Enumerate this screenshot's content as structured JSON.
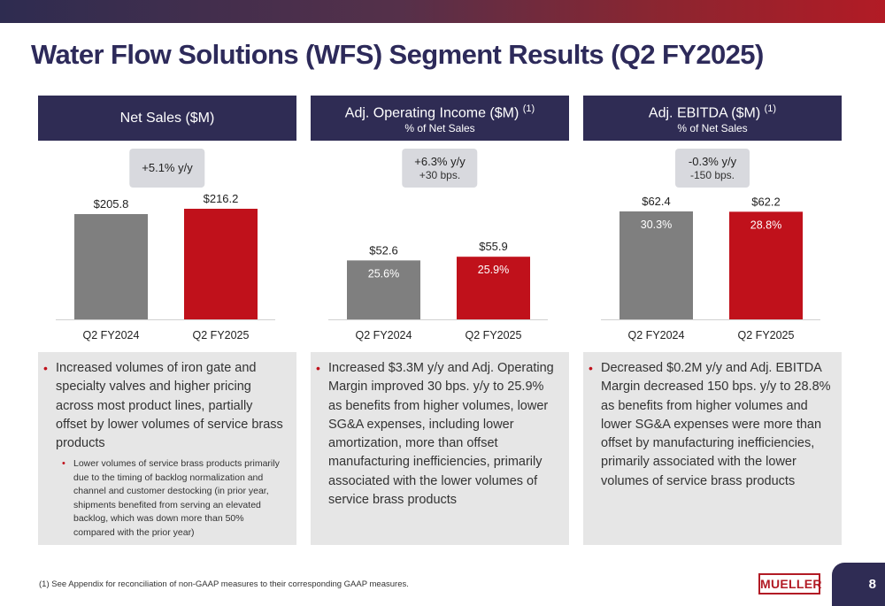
{
  "title": "Water Flow Solutions (WFS) Segment Results (Q2 FY2025)",
  "footnote": "(1)  See Appendix for reconciliation of non-GAAP measures to their corresponding GAAP measures.",
  "logo_text": "MUELLER",
  "page_number": "8",
  "colors": {
    "header_navy": "#2f2c54",
    "bar_prior": "#7f7f7f",
    "bar_current": "#c0111b",
    "title": "#2d2a5a",
    "bullet": "#c0111b"
  },
  "panels": [
    {
      "header": "Net Sales ($M)",
      "header_sup": "",
      "subheader": "",
      "change_line1": "+5.1% y/y",
      "change_line2": "",
      "bullets": [
        {
          "text": "Increased volumes of iron gate and specialty valves and higher pricing across most product lines, partially offset by lower volumes of service brass products",
          "sub": "Lower volumes of service brass products primarily due to the timing of backlog normalization and channel and customer destocking (in prior year, shipments benefited from serving an elevated backlog, which was down more than 50% compared with the prior year)"
        }
      ]
    },
    {
      "header": "Adj. Operating Income ($M)",
      "header_sup": "(1)",
      "subheader": "% of Net Sales",
      "change_line1": "+6.3% y/y",
      "change_line2": "+30 bps.",
      "bullets": [
        {
          "text": "Increased $3.3M y/y and Adj. Operating Margin improved 30 bps. y/y to 25.9% as benefits from higher volumes, lower SG&A expenses, including lower amortization, more than offset manufacturing inefficiencies, primarily associated with the lower volumes of service brass products",
          "sub": ""
        }
      ]
    },
    {
      "header": "Adj. EBITDA ($M)",
      "header_sup": "(1)",
      "subheader": "% of Net Sales",
      "change_line1": "-0.3% y/y",
      "change_line2": "-150 bps.",
      "bullets": [
        {
          "text": "Decreased $0.2M y/y and Adj. EBITDA Margin decreased 150 bps. y/y to 28.8% as benefits from higher volumes and lower SG&A expenses were more than offset by manufacturing inefficiencies, primarily associated with the lower volumes of service brass products",
          "sub": ""
        }
      ]
    }
  ],
  "chart_data": [
    {
      "type": "bar",
      "categories": [
        "Q2 FY2024",
        "Q2 FY2025"
      ],
      "values": [
        205.8,
        216.2
      ],
      "value_labels": [
        "$205.8",
        "$216.2"
      ],
      "inner_labels": [
        "",
        ""
      ],
      "title": "Net Sales ($M)",
      "ylim": [
        0,
        230
      ]
    },
    {
      "type": "bar",
      "categories": [
        "Q2 FY2024",
        "Q2 FY2025"
      ],
      "values": [
        52.6,
        55.9
      ],
      "value_labels": [
        "$52.6",
        "$55.9"
      ],
      "inner_labels": [
        "25.6%",
        "25.9%"
      ],
      "title": "Adj. Operating Income ($M)",
      "ylim": [
        0,
        105
      ]
    },
    {
      "type": "bar",
      "categories": [
        "Q2 FY2024",
        "Q2 FY2025"
      ],
      "values": [
        62.4,
        62.2
      ],
      "value_labels": [
        "$62.4",
        "$62.2"
      ],
      "inner_labels": [
        "30.3%",
        "28.8%"
      ],
      "title": "Adj. EBITDA ($M)",
      "ylim": [
        0,
        68
      ]
    }
  ]
}
